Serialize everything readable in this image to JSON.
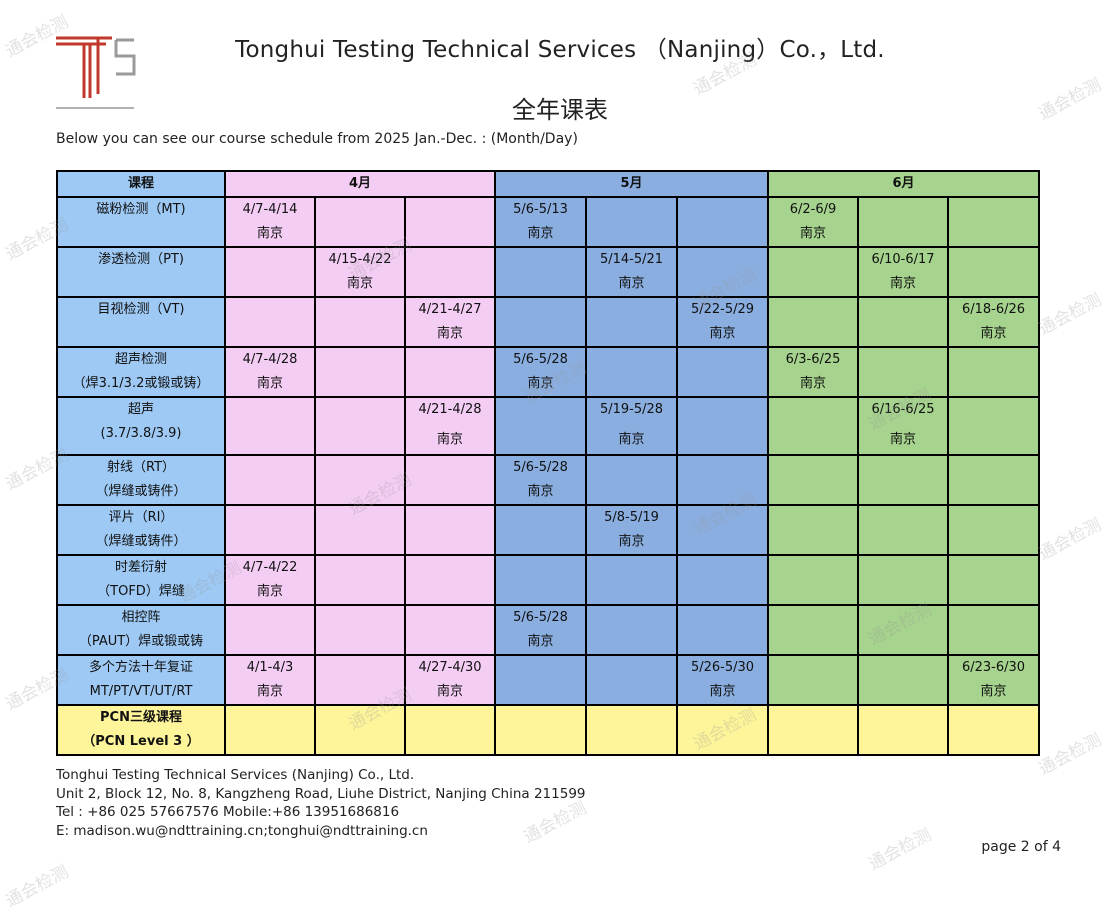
{
  "header": {
    "company_title": "Tonghui Testing Technical Services （Nanjing）Co.，Ltd.",
    "schedule_title": "全年课表",
    "intro": "Below you can see our course schedule from 2025 Jan.-Dec. : (Month/Day)"
  },
  "colors": {
    "course_col": "#9dc9f4",
    "april": "#f4cdf4",
    "may": "#8aaee0",
    "june": "#a6d38d",
    "pcn_row": "#fef59a",
    "logo_red": "#c0392b",
    "logo_gray": "#9a9a9a"
  },
  "table": {
    "course_header": "课程",
    "months": [
      "4月",
      "5月",
      "6月"
    ],
    "rows": [
      {
        "name": "磁粉检测（MT)",
        "sub": "",
        "cells": [
          {
            "date": "4/7-4/14",
            "loc": "南京"
          },
          {
            "date": "",
            "loc": ""
          },
          {
            "date": "",
            "loc": ""
          },
          {
            "date": "5/6-5/13",
            "loc": "南京"
          },
          {
            "date": "",
            "loc": ""
          },
          {
            "date": "",
            "loc": ""
          },
          {
            "date": "6/2-6/9",
            "loc": "南京"
          },
          {
            "date": "",
            "loc": ""
          },
          {
            "date": "",
            "loc": ""
          }
        ]
      },
      {
        "name": "渗透检测（PT)",
        "sub": "",
        "cells": [
          {
            "date": "",
            "loc": ""
          },
          {
            "date": "4/15-4/22",
            "loc": "南京"
          },
          {
            "date": "",
            "loc": ""
          },
          {
            "date": "",
            "loc": ""
          },
          {
            "date": "5/14-5/21",
            "loc": "南京"
          },
          {
            "date": "",
            "loc": ""
          },
          {
            "date": "",
            "loc": ""
          },
          {
            "date": "6/10-6/17",
            "loc": "南京"
          },
          {
            "date": "",
            "loc": ""
          }
        ]
      },
      {
        "name": "目视检测（VT)",
        "sub": "",
        "cells": [
          {
            "date": "",
            "loc": ""
          },
          {
            "date": "",
            "loc": ""
          },
          {
            "date": "4/21-4/27",
            "loc": "南京"
          },
          {
            "date": "",
            "loc": ""
          },
          {
            "date": "",
            "loc": ""
          },
          {
            "date": "5/22-5/29",
            "loc": "南京"
          },
          {
            "date": "",
            "loc": ""
          },
          {
            "date": "",
            "loc": ""
          },
          {
            "date": "6/18-6/26",
            "loc": "南京"
          }
        ]
      },
      {
        "name": "超声检测",
        "sub": "（焊3.1/3.2或锻或铸）",
        "cells": [
          {
            "date": "4/7-4/28",
            "loc": "南京"
          },
          {
            "date": "",
            "loc": ""
          },
          {
            "date": "",
            "loc": ""
          },
          {
            "date": "5/6-5/28",
            "loc": "南京"
          },
          {
            "date": "",
            "loc": ""
          },
          {
            "date": "",
            "loc": ""
          },
          {
            "date": "6/3-6/25",
            "loc": "南京"
          },
          {
            "date": "",
            "loc": ""
          },
          {
            "date": "",
            "loc": ""
          }
        ]
      },
      {
        "name": "超声",
        "sub": "(3.7/3.8/3.9)",
        "tall": true,
        "cells": [
          {
            "date": "",
            "loc": ""
          },
          {
            "date": "",
            "loc": ""
          },
          {
            "date": "4/21-4/28",
            "loc": "南京"
          },
          {
            "date": "",
            "loc": ""
          },
          {
            "date": "5/19-5/28",
            "loc": "南京"
          },
          {
            "date": "",
            "loc": ""
          },
          {
            "date": "",
            "loc": ""
          },
          {
            "date": "6/16-6/25",
            "loc": "南京"
          },
          {
            "date": "",
            "loc": ""
          }
        ]
      },
      {
        "name": "射线（RT）",
        "sub": "（焊缝或铸件）",
        "cells": [
          {
            "date": "",
            "loc": ""
          },
          {
            "date": "",
            "loc": ""
          },
          {
            "date": "",
            "loc": ""
          },
          {
            "date": "5/6-5/28",
            "loc": "南京"
          },
          {
            "date": "",
            "loc": ""
          },
          {
            "date": "",
            "loc": ""
          },
          {
            "date": "",
            "loc": ""
          },
          {
            "date": "",
            "loc": ""
          },
          {
            "date": "",
            "loc": ""
          }
        ]
      },
      {
        "name": "评片（RI）",
        "sub": "（焊缝或铸件）",
        "cells": [
          {
            "date": "",
            "loc": ""
          },
          {
            "date": "",
            "loc": ""
          },
          {
            "date": "",
            "loc": ""
          },
          {
            "date": "",
            "loc": ""
          },
          {
            "date": "5/8-5/19",
            "loc": "南京"
          },
          {
            "date": "",
            "loc": ""
          },
          {
            "date": "",
            "loc": ""
          },
          {
            "date": "",
            "loc": ""
          },
          {
            "date": "",
            "loc": ""
          }
        ]
      },
      {
        "name": "时差衍射",
        "sub": "（TOFD）焊缝",
        "cells": [
          {
            "date": "4/7-4/22",
            "loc": "南京"
          },
          {
            "date": "",
            "loc": ""
          },
          {
            "date": "",
            "loc": ""
          },
          {
            "date": "",
            "loc": ""
          },
          {
            "date": "",
            "loc": ""
          },
          {
            "date": "",
            "loc": ""
          },
          {
            "date": "",
            "loc": ""
          },
          {
            "date": "",
            "loc": ""
          },
          {
            "date": "",
            "loc": ""
          }
        ]
      },
      {
        "name": "相控阵",
        "sub": "（PAUT）焊或锻或铸",
        "cells": [
          {
            "date": "",
            "loc": ""
          },
          {
            "date": "",
            "loc": ""
          },
          {
            "date": "",
            "loc": ""
          },
          {
            "date": "5/6-5/28",
            "loc": "南京"
          },
          {
            "date": "",
            "loc": ""
          },
          {
            "date": "",
            "loc": ""
          },
          {
            "date": "",
            "loc": ""
          },
          {
            "date": "",
            "loc": ""
          },
          {
            "date": "",
            "loc": ""
          }
        ]
      },
      {
        "name": "多个方法十年复证",
        "sub": "MT/PT/VT/UT/RT",
        "cells": [
          {
            "date": "4/1-4/3",
            "loc": "南京"
          },
          {
            "date": "",
            "loc": ""
          },
          {
            "date": "4/27-4/30",
            "loc": "南京"
          },
          {
            "date": "",
            "loc": ""
          },
          {
            "date": "",
            "loc": ""
          },
          {
            "date": "5/26-5/30",
            "loc": "南京"
          },
          {
            "date": "",
            "loc": ""
          },
          {
            "date": "",
            "loc": ""
          },
          {
            "date": "6/23-6/30",
            "loc": "南京"
          }
        ]
      }
    ],
    "pcn_row": {
      "name": "PCN三级课程",
      "sub": "（PCN Level 3 ）"
    }
  },
  "footer": {
    "line1": "Tonghui Testing Technical Services (Nanjing) Co., Ltd.",
    "line2": "Unit 2, Block 12, No. 8, Kangzheng Road, Liuhe District, Nanjing China 211599",
    "line3": "Tel : +86 025 57667576  Mobile:+86 13951686816",
    "line4": "E: madison.wu@ndttraining.cn;tonghui@ndttraining.cn"
  },
  "page_num": "page 2 of 4",
  "watermark": "通会检测"
}
